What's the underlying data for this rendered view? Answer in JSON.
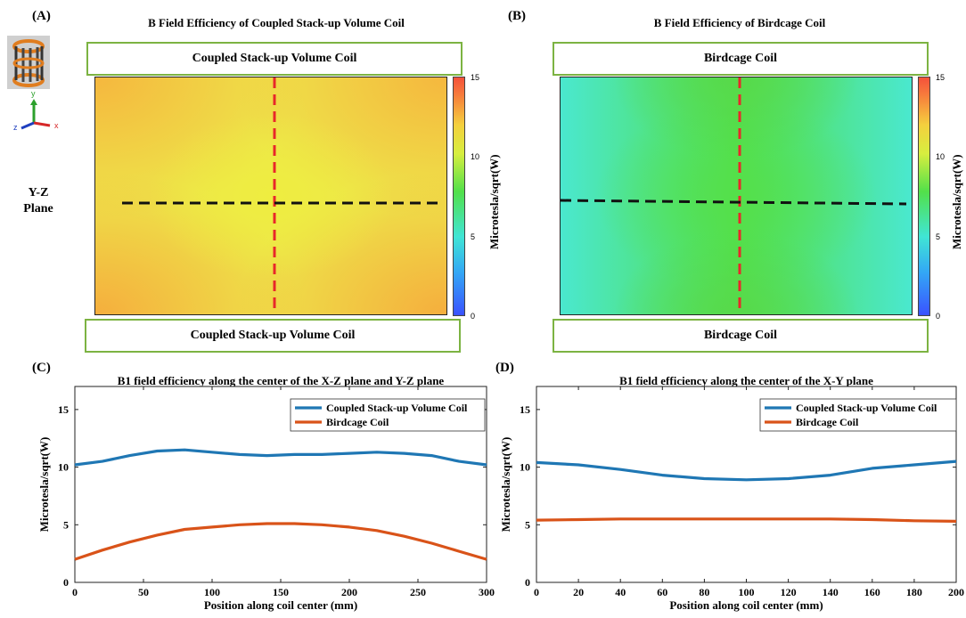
{
  "panel_a": {
    "letter": "(A)",
    "title": "B Field Efficiency of Coupled Stack-up Volume Coil",
    "top_box": "Coupled Stack-up Volume Coil",
    "bottom_box": "Coupled Stack-up Volume Coil",
    "plane_label_1": "Y-Z",
    "plane_label_2": "Plane",
    "axis_icon_labels": {
      "y": "y",
      "z": "z",
      "x": "x"
    }
  },
  "panel_b": {
    "letter": "(B)",
    "title": "B Field Efficiency of Birdcage Coil",
    "top_box": "Birdcage Coil",
    "bottom_box": "Birdcage Coil"
  },
  "colorbar": {
    "label": "Microtesla/sqrt(W)",
    "ticks": [
      "15",
      "10",
      "5",
      "0"
    ],
    "colors": {
      "low": "#3a52ff",
      "mid": "#52e04a",
      "high": "#f4513b"
    }
  },
  "colors": {
    "coupled": "#1f77b4",
    "birdcage": "#d95319",
    "dash_red": "#e8282a",
    "dash_black": "#111111",
    "box_border": "#7cb342"
  },
  "panel_c": {
    "letter": "(C)"
  },
  "panel_d": {
    "letter": "(D)"
  },
  "chart_data": [
    {
      "type": "heatmap",
      "title": "B Field Efficiency of Coupled Stack-up Volume Coil",
      "colorbar_label": "Microtesla/sqrt(W)",
      "clim": [
        0,
        15
      ],
      "approx_values": {
        "center": 11.5,
        "corners": 13.0,
        "range": [
          11,
          13.5
        ]
      }
    },
    {
      "type": "heatmap",
      "title": "B Field Efficiency of Birdcage Coil",
      "colorbar_label": "Microtesla/sqrt(W)",
      "clim": [
        0,
        15
      ],
      "approx_values": {
        "center": 8.0,
        "edges": 6.2,
        "range": [
          6,
          8.5
        ]
      }
    },
    {
      "type": "line",
      "title": "B1 field efficiency along the center of the X-Z plane and Y-Z plane",
      "xlabel": "Position along coil center (mm)",
      "ylabel": "Microtesla/sqrt(W)",
      "xlim": [
        0,
        300
      ],
      "ylim": [
        0,
        17
      ],
      "xticks": [
        0,
        50,
        100,
        150,
        200,
        250,
        300
      ],
      "yticks": [
        0,
        5,
        10,
        15
      ],
      "legend_position": "top-right",
      "series": [
        {
          "name": "Coupled Stack-up Volume Coil",
          "color": "#1f77b4",
          "x": [
            0,
            20,
            40,
            60,
            80,
            100,
            120,
            140,
            160,
            180,
            200,
            220,
            240,
            260,
            280,
            300
          ],
          "y": [
            10.2,
            10.5,
            11.0,
            11.4,
            11.5,
            11.3,
            11.1,
            11.0,
            11.1,
            11.1,
            11.2,
            11.3,
            11.2,
            11.0,
            10.5,
            10.2
          ]
        },
        {
          "name": "Birdcage Coil",
          "color": "#d95319",
          "x": [
            0,
            20,
            40,
            60,
            80,
            100,
            120,
            140,
            160,
            180,
            200,
            220,
            240,
            260,
            280,
            300
          ],
          "y": [
            2.0,
            2.8,
            3.5,
            4.1,
            4.6,
            4.8,
            5.0,
            5.1,
            5.1,
            5.0,
            4.8,
            4.5,
            4.0,
            3.4,
            2.7,
            2.0
          ]
        }
      ]
    },
    {
      "type": "line",
      "title": "B1 field efficiency along the center of the X-Y plane",
      "xlabel": "Position along coil center (mm)",
      "ylabel": "Microtesla/sqrt(W)",
      "xlim": [
        0,
        200
      ],
      "ylim": [
        0,
        17
      ],
      "xticks": [
        0,
        20,
        40,
        60,
        80,
        100,
        120,
        140,
        160,
        180,
        200
      ],
      "yticks": [
        0,
        5,
        10,
        15
      ],
      "legend_position": "top-right",
      "series": [
        {
          "name": "Coupled Stack-up Volume Coil",
          "color": "#1f77b4",
          "x": [
            0,
            20,
            40,
            60,
            80,
            100,
            120,
            140,
            160,
            180,
            200
          ],
          "y": [
            10.4,
            10.2,
            9.8,
            9.3,
            9.0,
            8.9,
            9.0,
            9.3,
            9.9,
            10.2,
            10.5
          ]
        },
        {
          "name": "Birdcage Coil",
          "color": "#d95319",
          "x": [
            0,
            20,
            40,
            60,
            80,
            100,
            120,
            140,
            160,
            180,
            200
          ],
          "y": [
            5.4,
            5.45,
            5.5,
            5.5,
            5.5,
            5.5,
            5.5,
            5.5,
            5.45,
            5.35,
            5.3
          ]
        }
      ]
    }
  ]
}
